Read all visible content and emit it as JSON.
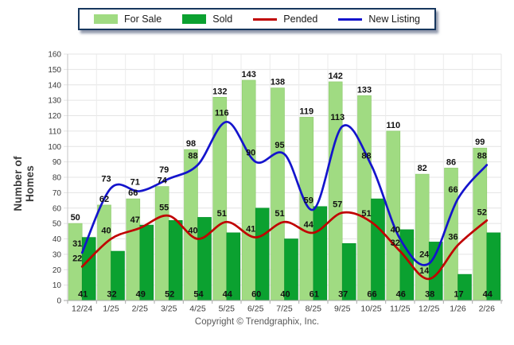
{
  "legend": {
    "items": [
      {
        "id": "for-sale",
        "label": "For Sale",
        "marker": "swatch",
        "color": "#A0DB82"
      },
      {
        "id": "sold",
        "label": "Sold",
        "marker": "swatch",
        "color": "#0BA130"
      },
      {
        "id": "pended",
        "label": "Pended",
        "marker": "line",
        "color": "#C00000"
      },
      {
        "id": "new-listing",
        "label": "New Listing",
        "marker": "line",
        "color": "#1414CC"
      }
    ]
  },
  "chart_data": {
    "type": "combo",
    "title": "",
    "categories": [
      "12/24",
      "1/25",
      "2/25",
      "3/25",
      "4/25",
      "5/25",
      "6/25",
      "7/25",
      "8/25",
      "9/25",
      "10/25",
      "11/25",
      "12/25",
      "1/26",
      "2/26"
    ],
    "series": [
      {
        "name": "For Sale",
        "type": "bar",
        "color": "#A0DB82",
        "edge": "#8CC96C",
        "values": [
          50,
          62,
          66,
          74,
          98,
          132,
          143,
          138,
          119,
          142,
          133,
          110,
          82,
          86,
          99
        ]
      },
      {
        "name": "Sold",
        "type": "bar",
        "color": "#0BA130",
        "edge": "#089128",
        "values": [
          41,
          32,
          49,
          52,
          54,
          44,
          60,
          40,
          61,
          37,
          66,
          46,
          38,
          17,
          44
        ]
      },
      {
        "name": "Pended",
        "type": "line",
        "color": "#C00000",
        "values": [
          22,
          40,
          47,
          55,
          40,
          51,
          41,
          51,
          44,
          57,
          51,
          32,
          14,
          36,
          52
        ]
      },
      {
        "name": "New Listing",
        "type": "line",
        "color": "#1414CC",
        "values": [
          31,
          73,
          71,
          79,
          88,
          116,
          90,
          95,
          59,
          113,
          88,
          40,
          24,
          66,
          88
        ]
      }
    ],
    "ylabel": "Number of Homes",
    "xlabel": "",
    "ylim": [
      0,
      160
    ],
    "ytick_step": 10,
    "grid": true,
    "legend_position": "top"
  },
  "footer": {
    "copyright": "Copyright © Trendgraphix, Inc."
  }
}
